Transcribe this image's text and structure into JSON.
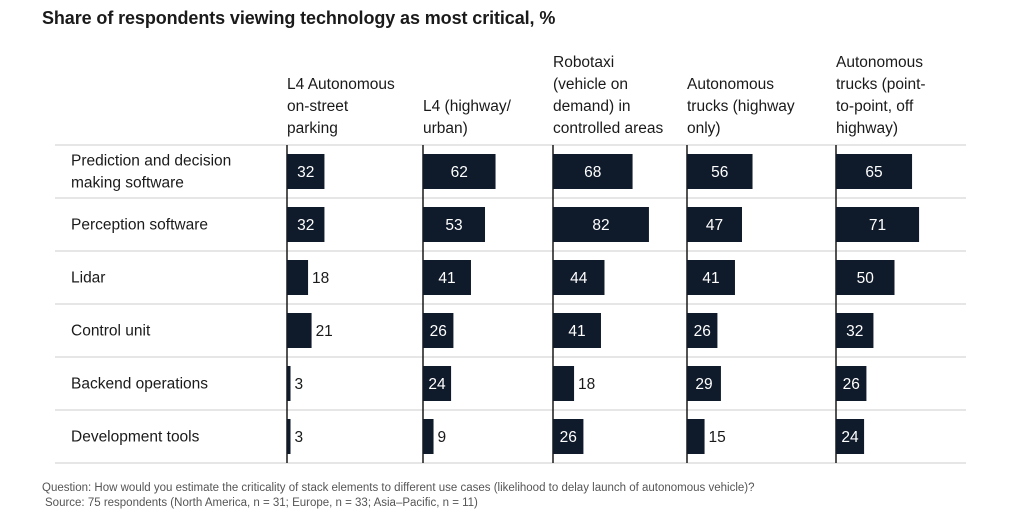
{
  "title": "Share of respondents viewing technology as most critical, %",
  "chart_data": {
    "type": "bar",
    "orientation": "horizontal",
    "layout": "small-multiples",
    "categories": [
      [
        "Prediction and decision",
        "making software"
      ],
      [
        "Perception software"
      ],
      [
        "Lidar"
      ],
      [
        "Control unit"
      ],
      [
        "Backend operations"
      ],
      [
        "Development tools"
      ]
    ],
    "series": [
      {
        "name": [
          "L4 Autonomous",
          "on-street",
          "parking"
        ],
        "values": [
          32,
          32,
          18,
          21,
          3,
          3
        ]
      },
      {
        "name": [
          "L4 (highway/",
          "urban)"
        ],
        "values": [
          62,
          53,
          41,
          26,
          24,
          9
        ]
      },
      {
        "name": [
          "Robotaxi",
          "(vehicle on",
          "demand) in",
          "controlled areas"
        ],
        "values": [
          68,
          82,
          44,
          41,
          18,
          26
        ]
      },
      {
        "name": [
          "Autonomous",
          "trucks (highway",
          "only)"
        ],
        "values": [
          56,
          47,
          41,
          26,
          29,
          15
        ]
      },
      {
        "name": [
          "Autonomous",
          "trucks (point-",
          "to-point, off",
          "highway)"
        ],
        "values": [
          65,
          71,
          50,
          32,
          26,
          24
        ]
      }
    ],
    "bar_color": "#0f1a2b",
    "label_color_inside": "#ffffff",
    "label_color_outside": "#1a1a1a",
    "grid_color": "#cccccc"
  },
  "footnotes": {
    "question": "Question: How would you estimate the criticality of stack elements to different use cases (likelihood to delay launch of autonomous vehicle)?",
    "source": "Source: 75 respondents (North America, n = 31; Europe, n = 33; Asia–Pacific, n = 11)"
  }
}
